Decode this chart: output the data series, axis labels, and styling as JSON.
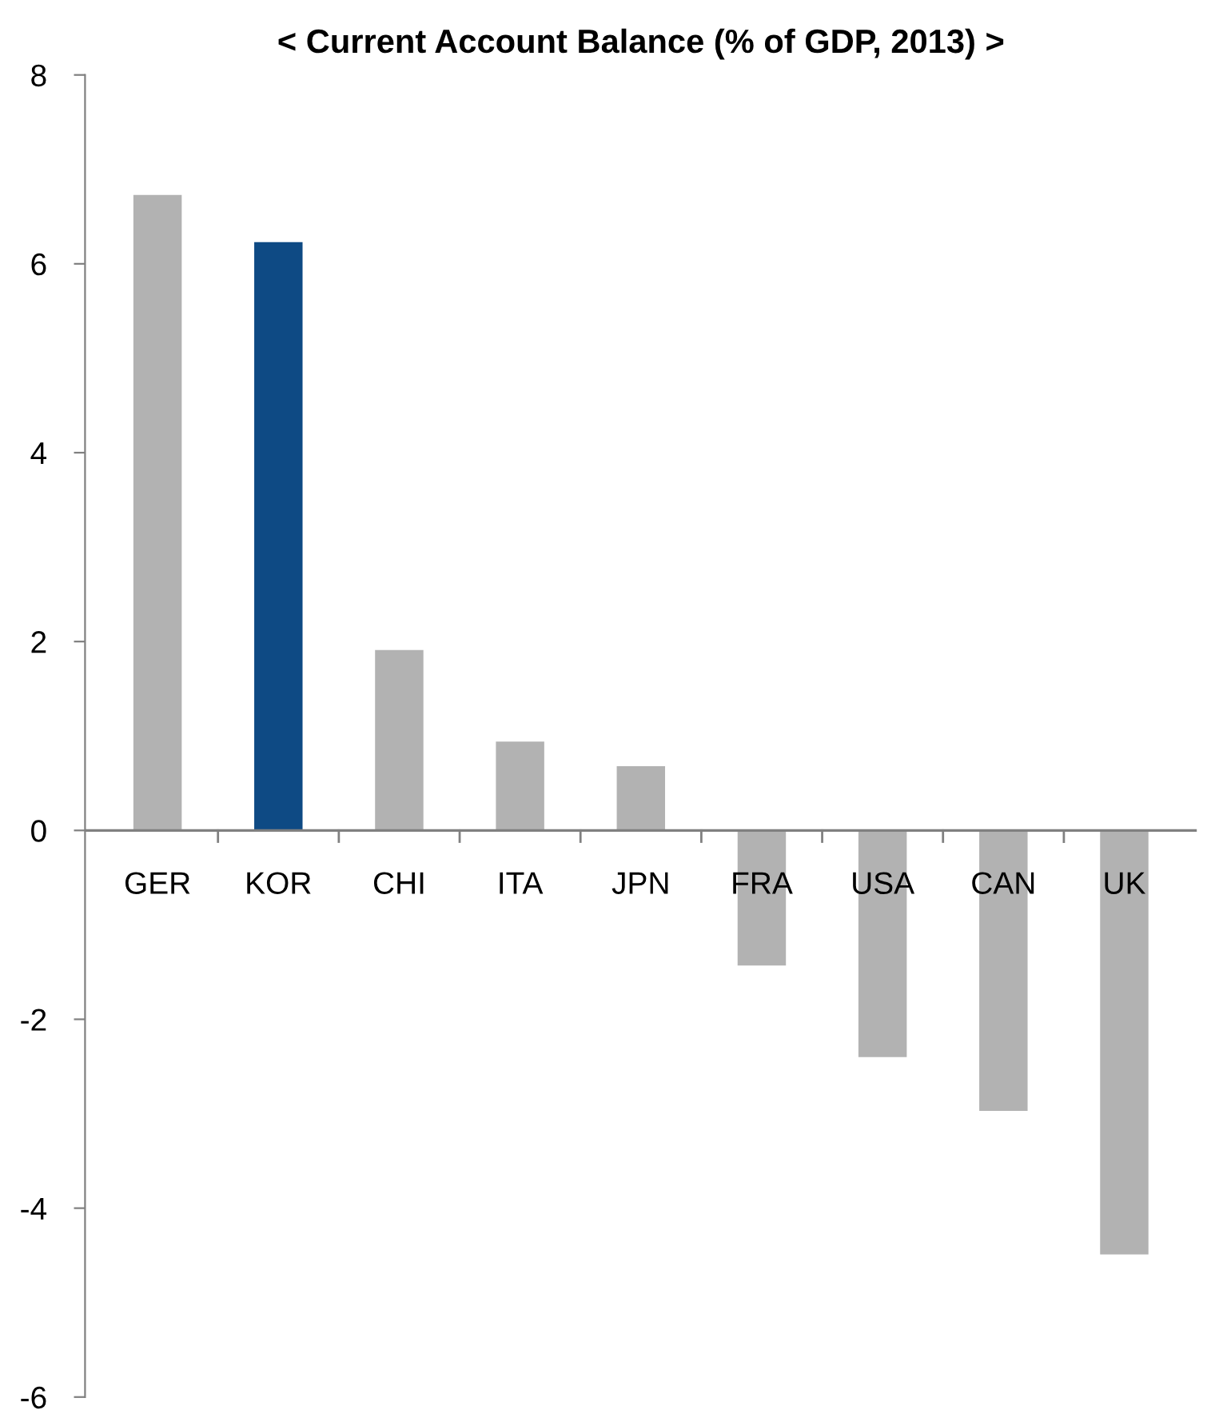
{
  "chart_data": {
    "type": "bar",
    "title": "< Current Account Balance (% of GDP, 2013) >",
    "categories": [
      "GER",
      "KOR",
      "CHI",
      "ITA",
      "JPN",
      "FRA",
      "USA",
      "CAN",
      "UK"
    ],
    "values": [
      6.73,
      6.23,
      1.91,
      0.94,
      0.68,
      -1.43,
      -2.4,
      -2.97,
      -4.49
    ],
    "colors": [
      "#b2b2b2",
      "#0e4a84",
      "#b2b2b2",
      "#b2b2b2",
      "#b2b2b2",
      "#b2b2b2",
      "#b2b2b2",
      "#b2b2b2",
      "#b2b2b2"
    ],
    "ylim": [
      -6,
      8
    ],
    "yticks": [
      -6,
      -4,
      -2,
      0,
      2,
      4,
      6,
      8
    ],
    "grid": false,
    "legend": false
  }
}
